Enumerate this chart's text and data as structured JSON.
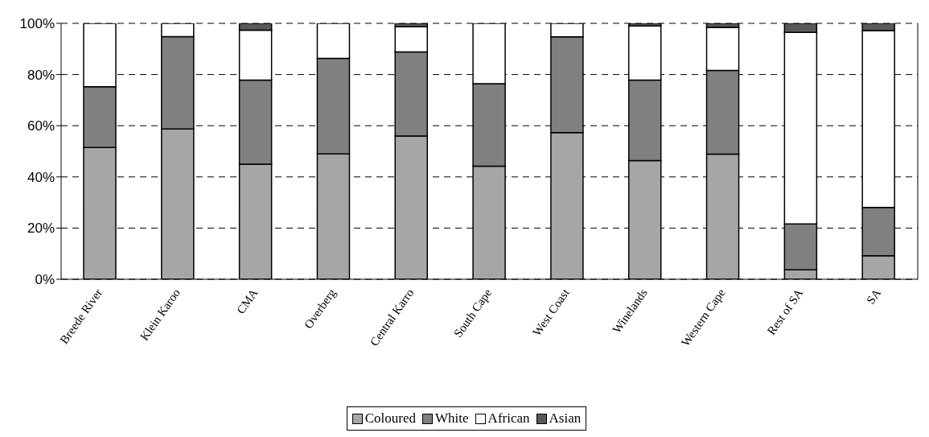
{
  "chart_data": {
    "type": "bar",
    "stacked": true,
    "categories": [
      "Breede River",
      "Klein Karoo",
      "CMA",
      "Overberg",
      "Central Karro",
      "South Cape",
      "West Coast",
      "Winelands",
      "Western Cape",
      "Rest of SA",
      "SA"
    ],
    "series": [
      {
        "name": "Coloured",
        "color": "#a6a6a6",
        "values": [
          51.5,
          58.7,
          45,
          49,
          56,
          44.2,
          57.3,
          46.4,
          48.9,
          3.7,
          9.2
        ]
      },
      {
        "name": "White",
        "color": "#808080",
        "values": [
          23.7,
          36.1,
          32.8,
          37.3,
          32.8,
          32.2,
          37.4,
          31.4,
          32.7,
          17.9,
          18.9
        ]
      },
      {
        "name": "African",
        "color": "#ffffff",
        "values": [
          24.8,
          5.2,
          19.5,
          13.7,
          9.9,
          23.6,
          5.3,
          21.2,
          16.8,
          74.9,
          69.1
        ]
      },
      {
        "name": "Asian",
        "color": "#595959",
        "values": [
          0,
          0,
          2.7,
          0,
          1.3,
          0,
          0,
          1.0,
          1.6,
          3.5,
          2.8
        ]
      }
    ],
    "ylim": [
      0,
      100
    ],
    "yticks": [
      {
        "value": 0,
        "label": "0%"
      },
      {
        "value": 20,
        "label": "20%"
      },
      {
        "value": 40,
        "label": "40%"
      },
      {
        "value": 60,
        "label": "60%"
      },
      {
        "value": 80,
        "label": "80%"
      },
      {
        "value": 100,
        "label": "100%"
      }
    ],
    "grid": "y",
    "legend": "bottom"
  }
}
